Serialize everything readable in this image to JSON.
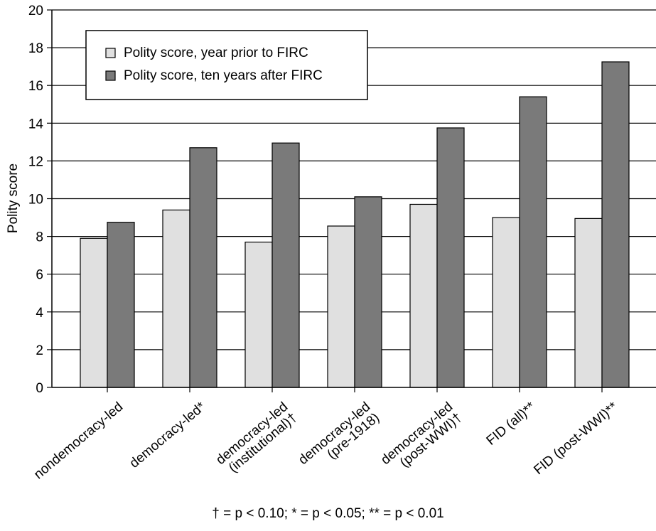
{
  "chart_data": {
    "type": "bar",
    "title": "",
    "xlabel": "",
    "ylabel": "Polity score",
    "ylim": [
      0,
      20
    ],
    "yticks": [
      0,
      2,
      4,
      6,
      8,
      10,
      12,
      14,
      16,
      18,
      20
    ],
    "grid": true,
    "legend_position": "top-left",
    "categories": [
      [
        "nondemocracy-led"
      ],
      [
        "democracy-led*"
      ],
      [
        "democracy-led",
        "(institutional)†"
      ],
      [
        "democracy-led",
        "(pre-1918)"
      ],
      [
        "democracy-led",
        "(post-WWI)†"
      ],
      [
        "FID (all)**"
      ],
      [
        "FID (post-WWI)**"
      ]
    ],
    "series": [
      {
        "name": "Polity score, year prior to FIRC",
        "color": "#e0e0e0",
        "values": [
          7.9,
          9.4,
          7.7,
          8.55,
          9.7,
          9.0,
          8.95
        ]
      },
      {
        "name": "Polity score, ten years after FIRC",
        "color": "#7a7a7a",
        "values": [
          8.75,
          12.7,
          12.95,
          10.1,
          13.75,
          15.4,
          17.25
        ]
      }
    ],
    "footnote": "† = p < 0.10; * = p < 0.05; ** = p < 0.01"
  }
}
